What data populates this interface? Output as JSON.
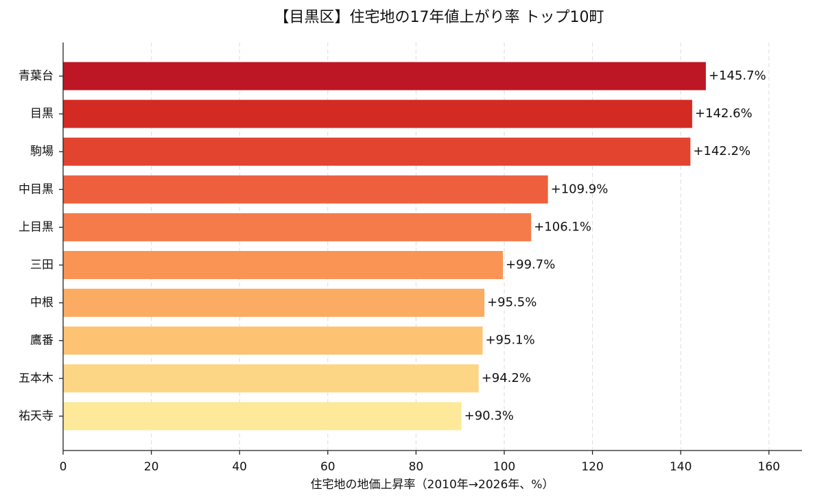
{
  "chart_data": {
    "type": "barh",
    "title": "【目黒区】住宅地の17年値上がり率 トップ10町",
    "x_label": "住宅地の地価上昇率（2010年→2026年、%）",
    "categories": [
      "青葉台",
      "目黒",
      "駒場",
      "中目黒",
      "上目黒",
      "三田",
      "中根",
      "鷹番",
      "五本木",
      "祐天寺"
    ],
    "values": [
      145.7,
      142.6,
      142.2,
      109.9,
      106.1,
      99.7,
      95.5,
      95.1,
      94.2,
      90.3
    ],
    "value_labels": [
      "+145.7%",
      "+142.6%",
      "+142.2%",
      "+109.9%",
      "+106.1%",
      "+99.7%",
      "+95.5%",
      "+95.1%",
      "+94.2%",
      "+90.3%"
    ],
    "colors": [
      "#bd1726",
      "#d42a24",
      "#e24430",
      "#ee603d",
      "#f57c4a",
      "#f99455",
      "#fcab63",
      "#fdc373",
      "#fdd685",
      "#fee89a"
    ],
    "xlim": [
      0,
      167.5
    ],
    "xticks": [
      0,
      20,
      40,
      60,
      80,
      100,
      120,
      140,
      160
    ],
    "grid": true
  }
}
